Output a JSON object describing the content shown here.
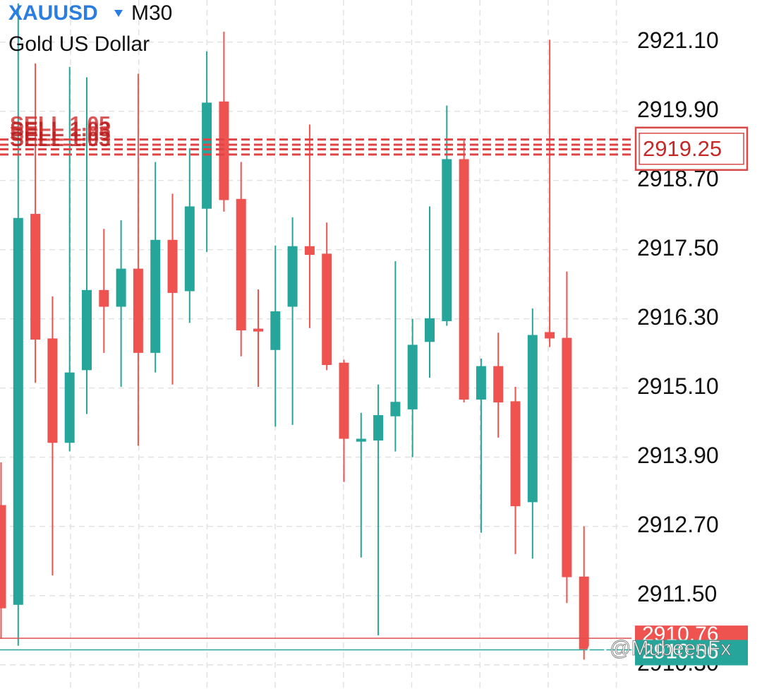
{
  "chart_data": {
    "type": "candlestick",
    "symbol": "XAUUSD",
    "timeframe": "M30",
    "description": "Gold US Dollar",
    "up_color": "#26a69a",
    "down_color": "#ef5350",
    "open": [
      2913.07,
      2911.34,
      2918.12,
      2915.96,
      2914.15,
      2915.41,
      2916.8,
      2916.51,
      2917.17,
      2915.71,
      2917.67,
      2916.78,
      2918.21,
      2920.07,
      2918.38,
      2916.13,
      2915.76,
      2916.51,
      2917.56,
      2917.43,
      2915.54,
      2914.17,
      2914.19,
      2914.61,
      2914.73,
      2915.9,
      2916.26,
      2919.07,
      2914.9,
      2915.48,
      2914.87,
      2913.12,
      2916.07,
      2915.97,
      2911.83
    ],
    "high": [
      2913.81,
      2921.77,
      2920.73,
      2916.69,
      2920.67,
      2920.49,
      2917.86,
      2918.01,
      2920.55,
      2919.02,
      2918.47,
      2919.26,
      2920.94,
      2921.28,
      2919.02,
      2916.81,
      2917.57,
      2918.06,
      2919.67,
      2917.97,
      2915.59,
      2914.67,
      2915.16,
      2917.3,
      2916.3,
      2918.25,
      2920.0,
      2919.39,
      2915.61,
      2916.06,
      2915.12,
      2916.48,
      2921.14,
      2917.12,
      2912.7
    ],
    "low": [
      2910.75,
      2910.63,
      2915.19,
      2911.85,
      2914.0,
      2914.65,
      2915.71,
      2915.12,
      2914.1,
      2915.37,
      2915.16,
      2916.23,
      2917.46,
      2918.16,
      2915.65,
      2915.12,
      2914.43,
      2914.46,
      2916.14,
      2915.41,
      2913.47,
      2912.16,
      2910.81,
      2914.0,
      2913.9,
      2915.28,
      2916.18,
      2914.85,
      2912.59,
      2914.24,
      2912.22,
      2912.14,
      2915.81,
      2911.37,
      2910.39
    ],
    "close": [
      2911.28,
      2918.05,
      2915.94,
      2914.15,
      2915.37,
      2916.8,
      2916.51,
      2917.17,
      2915.71,
      2917.67,
      2916.75,
      2918.25,
      2920.05,
      2918.36,
      2916.1,
      2916.08,
      2916.43,
      2917.56,
      2917.41,
      2915.5,
      2914.22,
      2914.22,
      2914.63,
      2914.86,
      2915.85,
      2916.31,
      2919.07,
      2914.9,
      2915.48,
      2914.85,
      2913.05,
      2916.02,
      2915.96,
      2911.82,
      2910.57
    ],
    "ylim": [
      2909.88,
      2921.83
    ],
    "yticks": [
      {
        "value": 2921.1,
        "label": "2921.10"
      },
      {
        "value": 2919.9,
        "label": "2919.90"
      },
      {
        "value": 2918.7,
        "label": "2918.70"
      },
      {
        "value": 2917.5,
        "label": "2917.50"
      },
      {
        "value": 2916.3,
        "label": "2916.30"
      },
      {
        "value": 2915.1,
        "label": "2915.10"
      },
      {
        "value": 2913.9,
        "label": "2913.90"
      },
      {
        "value": 2912.7,
        "label": "2912.70"
      },
      {
        "value": 2911.5,
        "label": "2911.50"
      },
      {
        "value": 2910.3,
        "label": "2910.30"
      }
    ],
    "grid": true,
    "orders": [
      {
        "label": "SELL 1.05",
        "price": 2919.41
      },
      {
        "label": "SELL 1.03",
        "price": 2919.32
      },
      {
        "label": "SELL 1.05",
        "price": 2919.24
      },
      {
        "label": "SELL 1.03",
        "price": 2919.15
      }
    ],
    "order_price": 2919.25,
    "ask": 2910.76,
    "bid": 2910.56,
    "watermark": "@MubeenFx"
  }
}
